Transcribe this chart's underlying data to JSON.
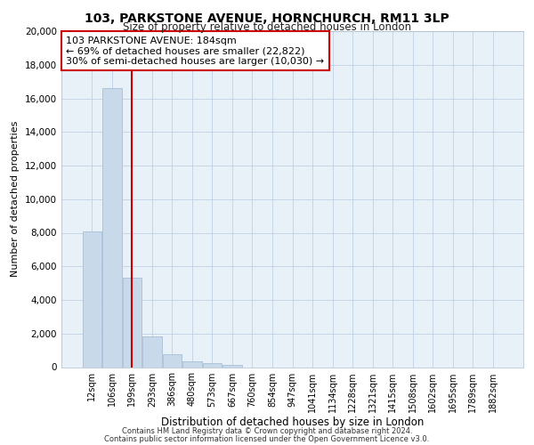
{
  "title1": "103, PARKSTONE AVENUE, HORNCHURCH, RM11 3LP",
  "title2": "Size of property relative to detached houses in London",
  "xlabel": "Distribution of detached houses by size in London",
  "ylabel": "Number of detached properties",
  "bar_labels": [
    "12sqm",
    "106sqm",
    "199sqm",
    "293sqm",
    "386sqm",
    "480sqm",
    "573sqm",
    "667sqm",
    "760sqm",
    "854sqm",
    "947sqm",
    "1041sqm",
    "1134sqm",
    "1228sqm",
    "1321sqm",
    "1415sqm",
    "1508sqm",
    "1602sqm",
    "1695sqm",
    "1789sqm",
    "1882sqm"
  ],
  "bar_values": [
    8100,
    16600,
    5300,
    1850,
    750,
    350,
    230,
    140,
    0,
    0,
    0,
    0,
    0,
    0,
    0,
    0,
    0,
    0,
    0,
    0,
    0
  ],
  "bar_color": "#c8daea",
  "bar_edge_color": "#a8c0d8",
  "property_line_x": 2.0,
  "annotation_title": "103 PARKSTONE AVENUE: 184sqm",
  "annotation_line1": "← 69% of detached houses are smaller (22,822)",
  "annotation_line2": "30% of semi-detached houses are larger (10,030) →",
  "annotation_box_facecolor": "#ffffff",
  "annotation_box_edgecolor": "#cc0000",
  "property_line_color": "#cc0000",
  "ylim": [
    0,
    20000
  ],
  "yticks": [
    0,
    2000,
    4000,
    6000,
    8000,
    10000,
    12000,
    14000,
    16000,
    18000,
    20000
  ],
  "footer1": "Contains HM Land Registry data © Crown copyright and database right 2024.",
  "footer2": "Contains public sector information licensed under the Open Government Licence v3.0.",
  "plot_bg_color": "#e8f0f8"
}
